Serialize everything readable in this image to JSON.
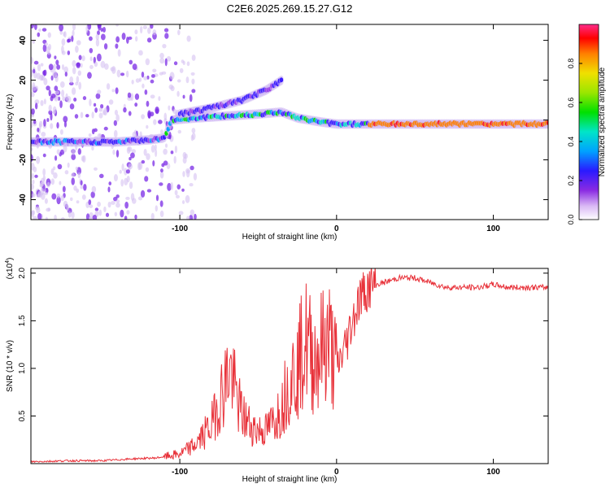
{
  "title": "C2E6.2025.269.15.27.G12",
  "colors": {
    "snr_line": "#e8323a",
    "axis": "#000000",
    "background": "#ffffff"
  },
  "chart_data": [
    {
      "type": "heatmap",
      "title": "C2E6.2025.269.15.27.G12",
      "xlabel": "Height of straight line (km)",
      "ylabel": "Frequency (Hz)",
      "xlim": [
        -195,
        135
      ],
      "ylim": [
        -50,
        48
      ],
      "xticks": [
        -100,
        0,
        100
      ],
      "xtick_labels": [
        "-100",
        "0",
        "100"
      ],
      "yticks": [
        -40,
        -20,
        0,
        20,
        40
      ],
      "ytick_labels": [
        "-40",
        "-20",
        "0",
        "20",
        "40"
      ],
      "colorbar": {
        "label": "Normalized spectral amplitude",
        "range": [
          0,
          1
        ],
        "ticks": [
          0.0,
          0.2,
          0.4,
          0.6,
          0.8
        ],
        "tick_labels": [
          "0.0",
          "0.2",
          "0.4",
          "0.6",
          "0.8"
        ]
      },
      "traces": [
        {
          "name": "main doppler trace",
          "points": [
            [
              -195,
              -11
            ],
            [
              -160,
              -11
            ],
            [
              -140,
              -11
            ],
            [
              -120,
              -10
            ],
            [
              -110,
              -9
            ],
            [
              -105,
              0
            ],
            [
              -90,
              1
            ],
            [
              -70,
              2
            ],
            [
              -50,
              3
            ],
            [
              -35,
              4
            ],
            [
              -25,
              1
            ],
            [
              -10,
              -1
            ],
            [
              0,
              -2
            ],
            [
              20,
              -2
            ],
            [
              50,
              -2
            ],
            [
              80,
              -2
            ],
            [
              100,
              -2
            ],
            [
              135,
              -2
            ]
          ]
        },
        {
          "name": "upper branch",
          "points": [
            [
              -100,
              3
            ],
            [
              -80,
              6
            ],
            [
              -60,
              10
            ],
            [
              -45,
              15
            ],
            [
              -35,
              20
            ]
          ]
        }
      ]
    },
    {
      "type": "line",
      "xlabel": "Height of straight line (km)",
      "ylabel": "SNR (10 * v/v)",
      "y_multiplier": "(x10^4)",
      "xlim": [
        -195,
        135
      ],
      "ylim": [
        0,
        2.05
      ],
      "xticks": [
        -100,
        0,
        100
      ],
      "xtick_labels": [
        "-100",
        "0",
        "100"
      ],
      "yticks": [
        0.5,
        1.0,
        1.5,
        2.0
      ],
      "ytick_labels": [
        "0.5",
        "1.0",
        "1.5",
        "2.0"
      ],
      "series": [
        {
          "name": "SNR",
          "x": [
            -195,
            -170,
            -150,
            -130,
            -115,
            -100,
            -90,
            -80,
            -72,
            -68,
            -64,
            -60,
            -55,
            -50,
            -45,
            -40,
            -35,
            -30,
            -25,
            -20,
            -15,
            -10,
            -5,
            0,
            5,
            10,
            15,
            20,
            30,
            40,
            50,
            60,
            70,
            80,
            90,
            100,
            110,
            120,
            135
          ],
          "y": [
            0.02,
            0.03,
            0.03,
            0.05,
            0.06,
            0.1,
            0.2,
            0.4,
            0.8,
            1.0,
            0.7,
            0.5,
            0.4,
            0.35,
            0.35,
            0.45,
            0.6,
            0.9,
            1.0,
            1.3,
            1.1,
            1.2,
            1.3,
            1.0,
            1.2,
            1.5,
            1.75,
            1.85,
            1.9,
            1.95,
            1.95,
            1.9,
            1.85,
            1.85,
            1.85,
            1.88,
            1.85,
            1.85,
            1.85
          ]
        }
      ]
    }
  ]
}
